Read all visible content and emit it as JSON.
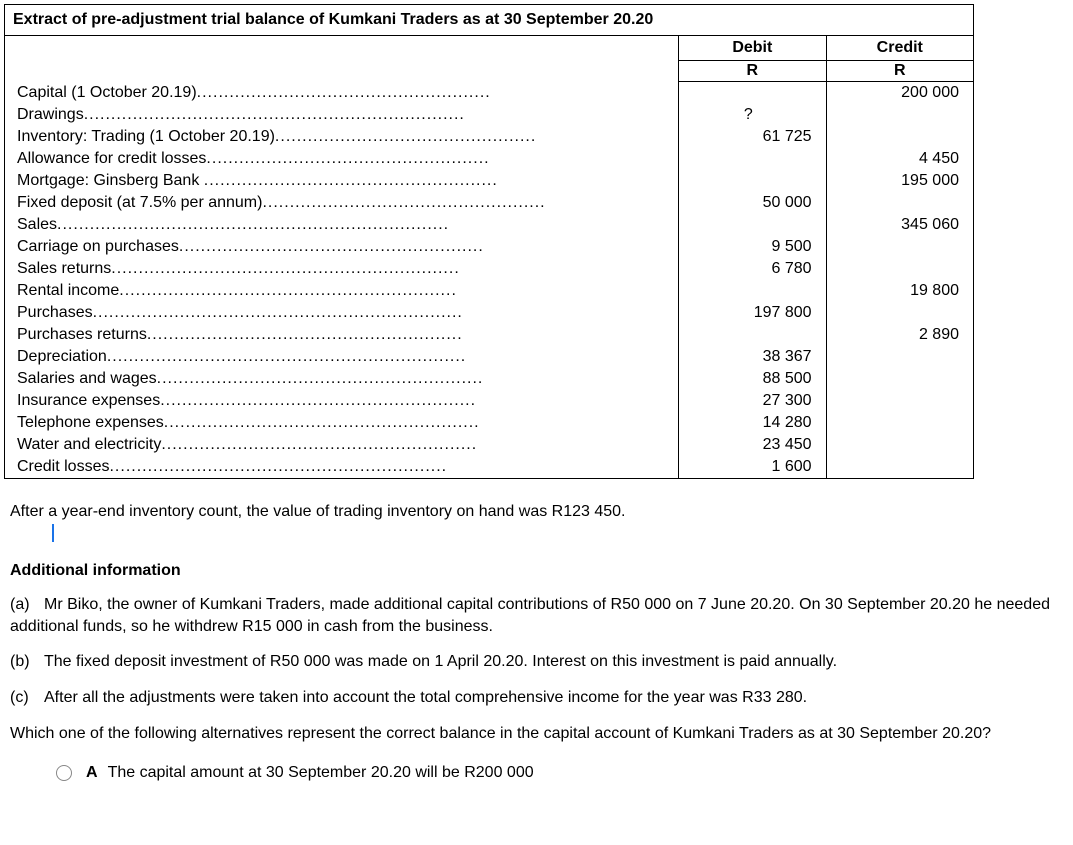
{
  "title": "Extract of pre-adjustment trial balance of Kumkani Traders as at 30 September 20.20",
  "headers": {
    "debit": "Debit",
    "credit": "Credit",
    "currency": "R"
  },
  "rows": [
    {
      "name": "Capital (1 October 20.19)",
      "dots": 54,
      "debit": "",
      "credit": "200 000"
    },
    {
      "name": "Drawings",
      "dots": 70,
      "debit": "?",
      "credit": ""
    },
    {
      "name": "Inventory: Trading (1 October 20.19)",
      "dots": 48,
      "debit": "61 725",
      "credit": ""
    },
    {
      "name": "Allowance for credit losses",
      "dots": 52,
      "debit": "",
      "credit": "4 450"
    },
    {
      "name": "Mortgage: Ginsberg Bank ",
      "dots": 54,
      "debit": "",
      "credit": "195 000"
    },
    {
      "name": "Fixed deposit (at 7.5% per annum)",
      "dots": 52,
      "debit": "50 000",
      "credit": ""
    },
    {
      "name": "Sales",
      "dots": 72,
      "debit": "",
      "credit": "345 060"
    },
    {
      "name": "Carriage on purchases",
      "dots": 56,
      "debit": "9 500",
      "credit": ""
    },
    {
      "name": "Sales returns",
      "dots": 64,
      "debit": "6 780",
      "credit": ""
    },
    {
      "name": "Rental income",
      "dots": 62,
      "debit": "",
      "credit": "19 800"
    },
    {
      "name": "Purchases",
      "dots": 68,
      "debit": "197 800",
      "credit": ""
    },
    {
      "name": "Purchases returns",
      "dots": 58,
      "debit": "",
      "credit": "2 890"
    },
    {
      "name": "Depreciation",
      "dots": 66,
      "debit": "38 367",
      "credit": ""
    },
    {
      "name": "Salaries and wages",
      "dots": 60,
      "debit": "88 500",
      "credit": ""
    },
    {
      "name": "Insurance expenses",
      "dots": 58,
      "debit": "27 300",
      "credit": ""
    },
    {
      "name": "Telephone expenses",
      "dots": 58,
      "debit": "14 280",
      "credit": ""
    },
    {
      "name": "Water and electricity",
      "dots": 58,
      "debit": "23 450",
      "credit": ""
    },
    {
      "name": "Credit losses",
      "dots": 62,
      "debit": "1 600",
      "credit": ""
    }
  ],
  "after_para": "After a year-end inventory count, the value of trading inventory on hand was R123 450.",
  "additional_heading": "Additional information",
  "info_a_label": "(a)",
  "info_a": "Mr Biko, the owner of Kumkani Traders, made additional capital contributions of R50 000 on 7 June 20.20. On 30 September 20.20 he needed additional funds, so he withdrew R15 000 in cash from the business.",
  "info_b_label": "(b)",
  "info_b": "The fixed deposit investment of R50 000 was made on 1 April 20.20. Interest on this investment is paid annually.",
  "info_c_label": "(c)",
  "info_c": "After all the adjustments were taken into account the total comprehensive income for the year was R33 280.",
  "question": "Which one of the following alternatives represent the correct balance in the capital account  of Kumkani Traders as at 30 September 20.20?",
  "option_a_label": "A",
  "option_a_text": "The capital amount at 30 September 20.20 will be R200 000"
}
